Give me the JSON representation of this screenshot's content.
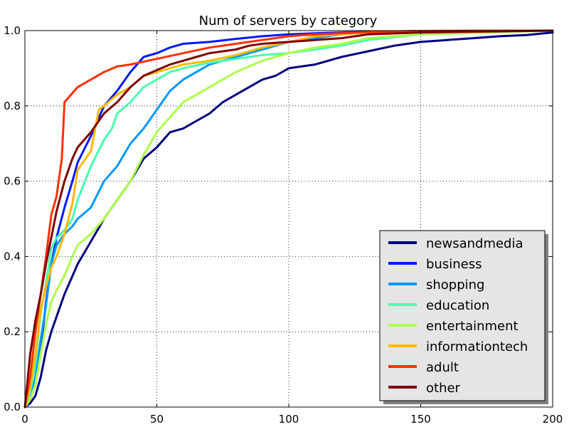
{
  "chart_data": {
    "type": "line",
    "title": "Num of servers by category",
    "xlabel": "",
    "ylabel": "",
    "xlim": [
      0,
      200
    ],
    "ylim": [
      0.0,
      1.0
    ],
    "x_ticks": [
      "0",
      "50",
      "100",
      "150",
      "200"
    ],
    "y_ticks": [
      "0.0",
      "0.2",
      "0.4",
      "0.6",
      "0.8",
      "1.0"
    ],
    "grid": true,
    "legend_position": "lower-right",
    "series": [
      {
        "name": "newsandmedia",
        "color": "#00007f",
        "x": [
          0,
          2,
          4,
          6,
          8,
          10,
          12,
          15,
          20,
          25,
          30,
          35,
          40,
          45,
          50,
          55,
          60,
          65,
          70,
          75,
          80,
          85,
          90,
          95,
          100,
          110,
          120,
          130,
          140,
          150,
          160,
          170,
          180,
          190,
          200
        ],
        "y": [
          0.0,
          0.01,
          0.03,
          0.08,
          0.15,
          0.2,
          0.24,
          0.3,
          0.38,
          0.44,
          0.5,
          0.55,
          0.6,
          0.66,
          0.69,
          0.73,
          0.74,
          0.76,
          0.78,
          0.81,
          0.83,
          0.85,
          0.87,
          0.88,
          0.9,
          0.91,
          0.93,
          0.945,
          0.96,
          0.97,
          0.975,
          0.98,
          0.985,
          0.988,
          0.995
        ]
      },
      {
        "name": "business",
        "color": "#0019ff",
        "x": [
          0,
          2,
          4,
          6,
          8,
          10,
          12,
          15,
          18,
          20,
          25,
          30,
          35,
          40,
          45,
          50,
          55,
          60,
          70,
          80,
          90,
          100,
          110,
          120,
          130,
          150,
          200
        ],
        "y": [
          0.0,
          0.02,
          0.06,
          0.15,
          0.28,
          0.38,
          0.45,
          0.53,
          0.6,
          0.65,
          0.72,
          0.8,
          0.84,
          0.89,
          0.93,
          0.94,
          0.955,
          0.965,
          0.97,
          0.978,
          0.985,
          0.99,
          0.993,
          0.995,
          0.997,
          0.999,
          1.0
        ]
      },
      {
        "name": "shopping",
        "color": "#0099ff",
        "x": [
          0,
          2,
          4,
          6,
          8,
          10,
          12,
          15,
          18,
          20,
          25,
          30,
          35,
          40,
          45,
          50,
          55,
          60,
          65,
          70,
          80,
          90,
          100,
          110,
          120,
          130,
          150,
          200
        ],
        "y": [
          0.0,
          0.02,
          0.08,
          0.18,
          0.27,
          0.38,
          0.43,
          0.46,
          0.48,
          0.5,
          0.53,
          0.6,
          0.64,
          0.7,
          0.74,
          0.79,
          0.84,
          0.87,
          0.89,
          0.91,
          0.93,
          0.95,
          0.97,
          0.98,
          0.99,
          0.995,
          0.999,
          1.0
        ]
      },
      {
        "name": "education",
        "color": "#49ffad",
        "x": [
          0,
          2,
          4,
          6,
          8,
          10,
          12,
          15,
          18,
          20,
          25,
          30,
          33,
          35,
          40,
          45,
          50,
          55,
          60,
          70,
          80,
          90,
          100,
          110,
          120,
          130,
          150,
          200
        ],
        "y": [
          0.0,
          0.04,
          0.12,
          0.25,
          0.33,
          0.42,
          0.45,
          0.47,
          0.5,
          0.55,
          0.64,
          0.71,
          0.74,
          0.78,
          0.81,
          0.85,
          0.87,
          0.89,
          0.9,
          0.915,
          0.925,
          0.935,
          0.94,
          0.95,
          0.96,
          0.975,
          0.99,
          1.0
        ]
      },
      {
        "name": "entertainment",
        "color": "#adff49",
        "x": [
          0,
          2,
          4,
          6,
          8,
          10,
          12,
          15,
          18,
          20,
          25,
          30,
          35,
          40,
          45,
          50,
          55,
          60,
          65,
          70,
          75,
          80,
          90,
          100,
          110,
          120,
          130,
          150,
          200
        ],
        "y": [
          0.0,
          0.02,
          0.06,
          0.14,
          0.22,
          0.28,
          0.31,
          0.35,
          0.4,
          0.43,
          0.46,
          0.5,
          0.55,
          0.6,
          0.67,
          0.73,
          0.77,
          0.81,
          0.83,
          0.85,
          0.87,
          0.89,
          0.92,
          0.94,
          0.955,
          0.965,
          0.98,
          0.99,
          1.0
        ]
      },
      {
        "name": "informationtech",
        "color": "#ffb900",
        "x": [
          0,
          2,
          4,
          6,
          8,
          10,
          12,
          15,
          18,
          20,
          25,
          28,
          30,
          35,
          40,
          45,
          50,
          55,
          60,
          70,
          80,
          90,
          100,
          110,
          120,
          130,
          150,
          200
        ],
        "y": [
          0.0,
          0.05,
          0.14,
          0.26,
          0.32,
          0.37,
          0.4,
          0.46,
          0.54,
          0.63,
          0.68,
          0.79,
          0.8,
          0.83,
          0.85,
          0.88,
          0.89,
          0.9,
          0.91,
          0.92,
          0.935,
          0.955,
          0.97,
          0.985,
          0.99,
          0.995,
          0.999,
          1.0
        ]
      },
      {
        "name": "adult",
        "color": "#ff3000",
        "x": [
          0,
          2,
          4,
          6,
          8,
          10,
          12,
          14,
          15,
          20,
          25,
          30,
          35,
          40,
          50,
          60,
          70,
          80,
          90,
          100,
          110,
          120,
          130,
          150,
          200
        ],
        "y": [
          0.0,
          0.08,
          0.2,
          0.3,
          0.4,
          0.51,
          0.56,
          0.66,
          0.81,
          0.85,
          0.87,
          0.89,
          0.905,
          0.91,
          0.925,
          0.94,
          0.955,
          0.965,
          0.975,
          0.985,
          0.99,
          0.993,
          0.996,
          0.999,
          1.0
        ]
      },
      {
        "name": "other",
        "color": "#7f0000",
        "x": [
          0,
          2,
          4,
          6,
          8,
          10,
          12,
          15,
          18,
          20,
          25,
          30,
          35,
          40,
          45,
          50,
          55,
          60,
          65,
          70,
          80,
          85,
          90,
          100,
          110,
          120,
          130,
          150,
          200
        ],
        "y": [
          0.0,
          0.14,
          0.23,
          0.3,
          0.38,
          0.45,
          0.52,
          0.6,
          0.66,
          0.69,
          0.73,
          0.78,
          0.81,
          0.85,
          0.88,
          0.895,
          0.91,
          0.92,
          0.93,
          0.94,
          0.95,
          0.96,
          0.965,
          0.97,
          0.975,
          0.98,
          0.99,
          0.995,
          1.0
        ]
      }
    ]
  }
}
